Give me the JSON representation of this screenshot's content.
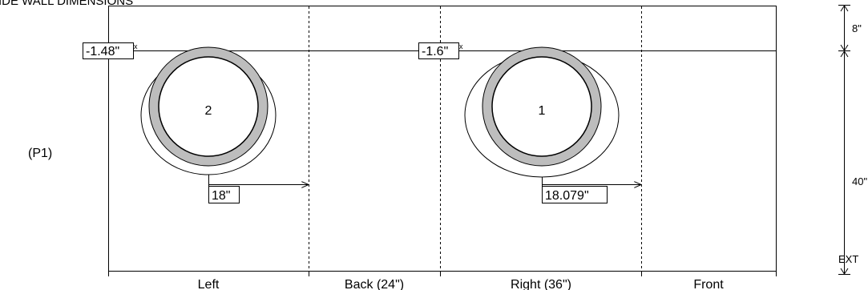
{
  "title": "SIDE WALL DIMENSIONS",
  "panel_label": "(P1)",
  "walls": [
    "Left",
    "Back (24\")",
    "Right (36\")",
    "Front"
  ],
  "height_dims": [
    "8\"",
    "40\"",
    "EXT"
  ],
  "pipes": [
    {
      "number": "2",
      "offset_label": "-1.48\"",
      "offset_mark": "x",
      "distance_label": "18\""
    },
    {
      "number": "1",
      "offset_label": "-1.6\"",
      "offset_mark": "x",
      "distance_label": "18.079\""
    }
  ],
  "colors": {
    "line": "#000000",
    "gasket": "#bdbdbd",
    "background": "#ffffff"
  }
}
